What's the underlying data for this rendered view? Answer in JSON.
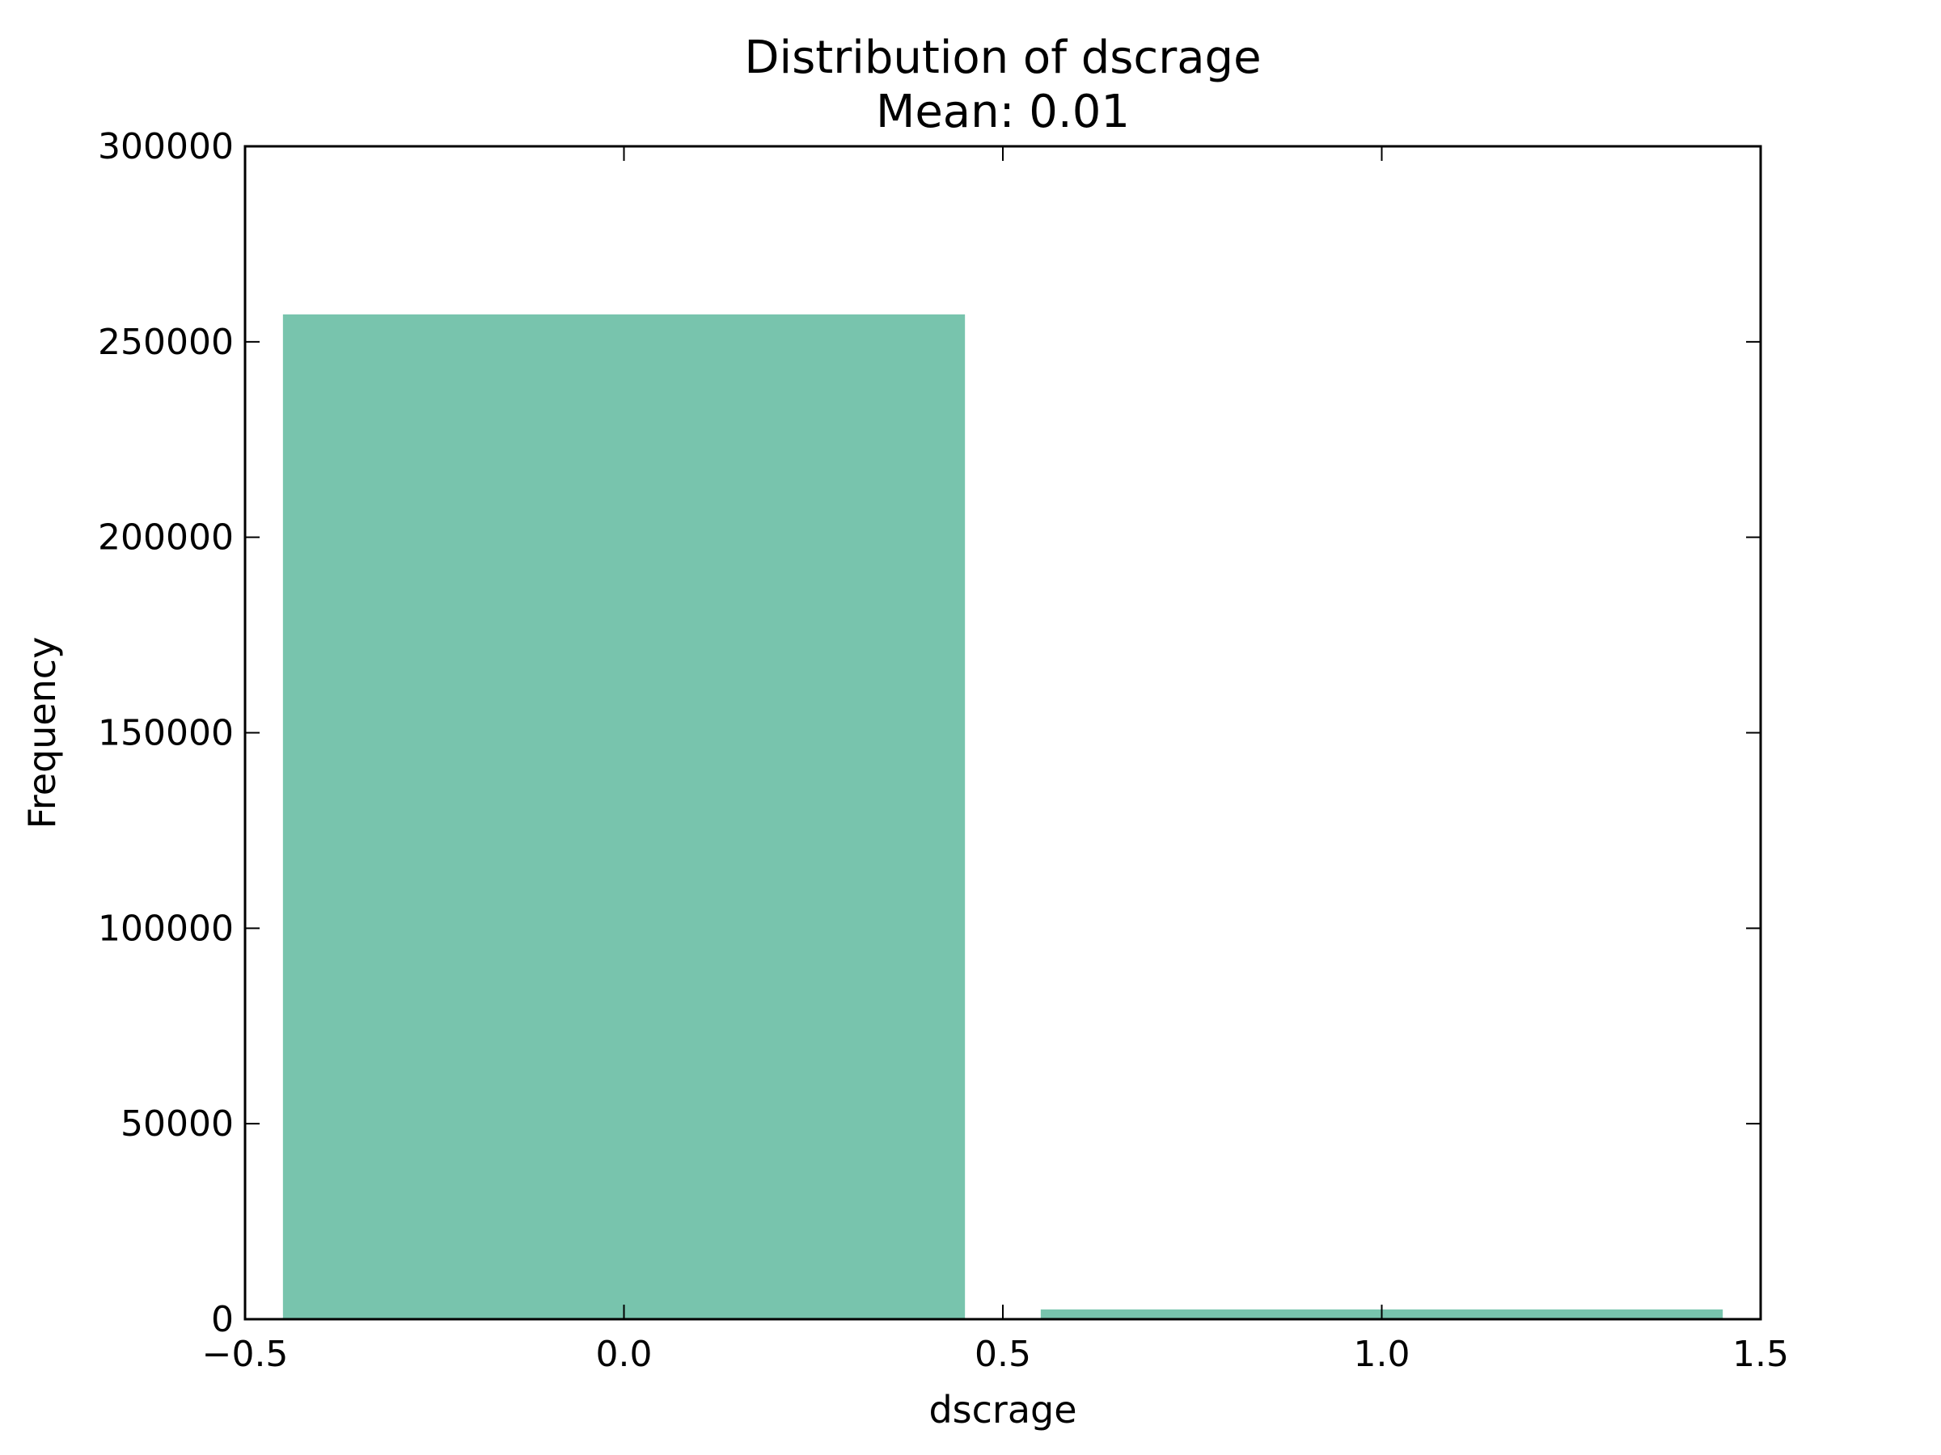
{
  "chart_data": {
    "type": "bar",
    "title": "Distribution of dscrage",
    "subtitle": "Mean: 0.01",
    "xlabel": "dscrage",
    "ylabel": "Frequency",
    "xlim": [
      -0.5,
      1.5
    ],
    "ylim": [
      0,
      300000
    ],
    "bar_width": 0.9,
    "bars": [
      {
        "x": 0,
        "value": 257000
      },
      {
        "x": 1,
        "value": 2500
      }
    ],
    "x_ticks": [
      {
        "value": -0.5,
        "label": "−0.5"
      },
      {
        "value": 0.0,
        "label": "0.0"
      },
      {
        "value": 0.5,
        "label": "0.5"
      },
      {
        "value": 1.0,
        "label": "1.0"
      },
      {
        "value": 1.5,
        "label": "1.5"
      }
    ],
    "y_ticks": [
      {
        "value": 0,
        "label": "0"
      },
      {
        "value": 50000,
        "label": "50000"
      },
      {
        "value": 100000,
        "label": "100000"
      },
      {
        "value": 150000,
        "label": "150000"
      },
      {
        "value": 200000,
        "label": "200000"
      },
      {
        "value": 250000,
        "label": "250000"
      },
      {
        "value": 300000,
        "label": "300000"
      }
    ],
    "grid": false,
    "legend": "none",
    "colors": {
      "bar": "#78c4ad",
      "axes": "#000000",
      "background": "#ffffff"
    }
  }
}
